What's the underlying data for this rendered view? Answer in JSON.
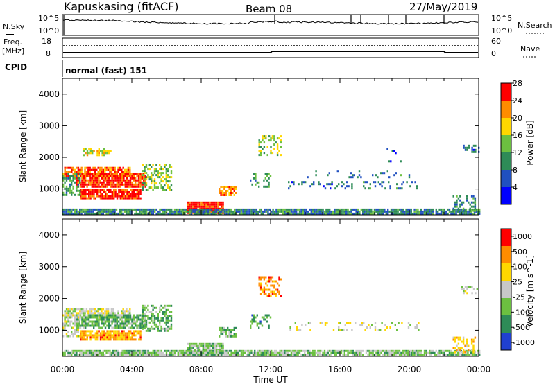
{
  "header": {
    "station": "Kapuskasing (fitACF)",
    "beam": "Beam 08",
    "date": "27/May/2019"
  },
  "noise_panel": {
    "left_label": "N.Sky",
    "right_label": "N.Search",
    "left_ticks": [
      "10^5",
      "10^0"
    ],
    "right_ticks": [
      "10^5",
      "10^0"
    ]
  },
  "freq_panel": {
    "left_label_top": "Freq.",
    "left_label_bottom": "[MHz]",
    "left_ticks": [
      "18",
      "8"
    ],
    "right_label": "Nave",
    "right_ticks": [
      "60",
      "0"
    ]
  },
  "cpid_panel": {
    "label": "CPID",
    "value": "normal (fast) 151"
  },
  "chart_data": [
    {
      "type": "heatmap",
      "panel": "power",
      "ylabel": "Slant Range [km]",
      "xlabel": "",
      "x_range": [
        0,
        24
      ],
      "ylim": [
        180,
        4500
      ],
      "yticks": [
        "1000",
        "2000",
        "3000",
        "4000"
      ],
      "colorbar_label": "Power [dB]",
      "colorbar_ticks": [
        "4",
        "8",
        "12",
        "16",
        "20",
        "24",
        "28"
      ],
      "colorbar_range": [
        0,
        32
      ],
      "colors": [
        "#0000ff",
        "#2050c0",
        "#2e8b57",
        "#6cc040",
        "#ffd700",
        "#ff8c00",
        "#ff0000"
      ],
      "regions": [
        {
          "t": [
            0.1,
            3.9
          ],
          "r": [
            1400,
            1700
          ],
          "level": 5.2,
          "density": 0.8
        },
        {
          "t": [
            0.8,
            4.8
          ],
          "r": [
            1050,
            1500
          ],
          "level": 5.8,
          "density": 0.85
        },
        {
          "t": [
            1.0,
            4.5
          ],
          "r": [
            700,
            1000
          ],
          "level": 6.0,
          "density": 0.85
        },
        {
          "t": [
            0.0,
            1.0
          ],
          "r": [
            800,
            1500
          ],
          "level": 2.5,
          "density": 0.6
        },
        {
          "t": [
            1.2,
            2.8
          ],
          "r": [
            2100,
            2300
          ],
          "level": 4.0,
          "density": 0.6
        },
        {
          "t": [
            4.6,
            6.3
          ],
          "r": [
            1000,
            1800
          ],
          "level": 3.0,
          "density": 0.55
        },
        {
          "t": [
            7.2,
            9.3
          ],
          "r": [
            230,
            600
          ],
          "level": 6.2,
          "density": 0.95
        },
        {
          "t": [
            9.0,
            10.0
          ],
          "r": [
            800,
            1100
          ],
          "level": 5.0,
          "density": 0.6
        },
        {
          "t": [
            11.3,
            12.6
          ],
          "r": [
            2050,
            2700
          ],
          "level": 3.0,
          "density": 0.45
        },
        {
          "t": [
            10.8,
            12.0
          ],
          "r": [
            1050,
            1500
          ],
          "level": 2.5,
          "density": 0.3
        },
        {
          "t": [
            13.0,
            20.5
          ],
          "r": [
            1050,
            1250
          ],
          "level": 1.5,
          "density": 0.22
        },
        {
          "t": [
            14.0,
            20.0
          ],
          "r": [
            1400,
            1600
          ],
          "level": 1.5,
          "density": 0.1
        },
        {
          "t": [
            0.0,
            24.0
          ],
          "r": [
            190,
            380
          ],
          "level": 1.8,
          "density": 0.9
        },
        {
          "t": [
            22.5,
            23.8
          ],
          "r": [
            300,
            800
          ],
          "level": 2.0,
          "density": 0.45
        },
        {
          "t": [
            23.0,
            24.0
          ],
          "r": [
            2200,
            2400
          ],
          "level": 1.5,
          "density": 0.4
        },
        {
          "t": [
            18.5,
            19.5
          ],
          "r": [
            1900,
            2300
          ],
          "level": 1.0,
          "density": 0.15
        }
      ]
    },
    {
      "type": "heatmap",
      "panel": "velocity",
      "ylabel": "Slant Range [km]",
      "xlabel": "Time UT",
      "x_range": [
        0,
        24
      ],
      "xticks": [
        "00:00",
        "04:00",
        "08:00",
        "12:00",
        "16:00",
        "20:00",
        "00:00"
      ],
      "ylim": [
        180,
        4500
      ],
      "yticks": [
        "1000",
        "2000",
        "3000",
        "4000"
      ],
      "colorbar_label": "Velocity [m s^-1]",
      "colorbar_ticks": [
        "1000",
        "500",
        "100",
        "25",
        "-25",
        "-100",
        "-500",
        "-1000"
      ],
      "colors": [
        "#2040d0",
        "#2e8b57",
        "#6cc040",
        "#c8c8c8",
        "#ffd700",
        "#ff8c00",
        "#ff0000"
      ],
      "regions": [
        {
          "t": [
            0.1,
            3.9
          ],
          "r": [
            1400,
            1700
          ],
          "level": 3.0,
          "density": 0.8
        },
        {
          "t": [
            0.8,
            4.8
          ],
          "r": [
            1050,
            1500
          ],
          "level": 1.8,
          "density": 0.8
        },
        {
          "t": [
            1.0,
            4.5
          ],
          "r": [
            700,
            1000
          ],
          "level": 4.6,
          "density": 0.8
        },
        {
          "t": [
            0.0,
            1.0
          ],
          "r": [
            800,
            1500
          ],
          "level": 3.0,
          "density": 0.6
        },
        {
          "t": [
            4.6,
            6.3
          ],
          "r": [
            1000,
            1800
          ],
          "level": 1.8,
          "density": 0.55
        },
        {
          "t": [
            7.2,
            9.3
          ],
          "r": [
            230,
            600
          ],
          "level": 2.4,
          "density": 0.9
        },
        {
          "t": [
            9.0,
            10.0
          ],
          "r": [
            800,
            1100
          ],
          "level": 1.8,
          "density": 0.6
        },
        {
          "t": [
            11.3,
            12.6
          ],
          "r": [
            2050,
            2700
          ],
          "level": 5.0,
          "density": 0.45
        },
        {
          "t": [
            10.8,
            12.0
          ],
          "r": [
            1050,
            1500
          ],
          "level": 1.5,
          "density": 0.3
        },
        {
          "t": [
            13.0,
            20.5
          ],
          "r": [
            1050,
            1250
          ],
          "level": 3.0,
          "density": 0.22
        },
        {
          "t": [
            0.0,
            24.0
          ],
          "r": [
            190,
            380
          ],
          "level": 2.2,
          "density": 0.9
        },
        {
          "t": [
            22.5,
            23.8
          ],
          "r": [
            300,
            800
          ],
          "level": 4.2,
          "density": 0.45
        },
        {
          "t": [
            23.0,
            24.0
          ],
          "r": [
            2200,
            2400
          ],
          "level": 3.0,
          "density": 0.4
        }
      ]
    }
  ]
}
